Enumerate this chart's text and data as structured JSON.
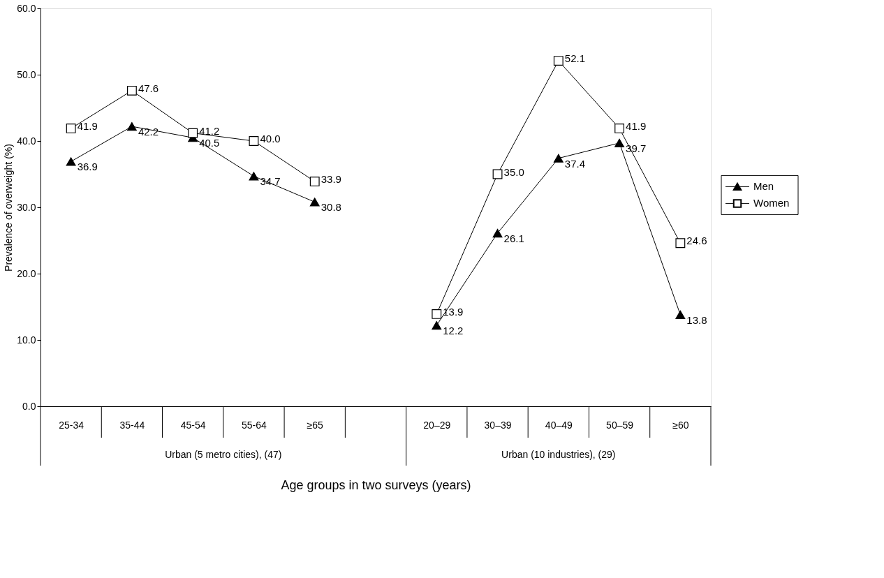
{
  "chart_data": {
    "type": "line",
    "xlabel": "Age groups in two surveys (years)",
    "ylabel": "Prevalence of overweight (%)",
    "categories": [
      "25-34",
      "35-44",
      "45-54",
      "55-64",
      "≥65",
      null,
      "20–29",
      "30–39",
      "40–49",
      "50–59",
      "≥60"
    ],
    "series": [
      {
        "name": "Men",
        "color": "#000000",
        "marker": "triangle",
        "values": [
          36.9,
          42.2,
          40.5,
          34.7,
          30.8,
          null,
          12.2,
          26.1,
          37.4,
          39.7,
          13.8
        ],
        "value_labels": [
          "36.9",
          "42.2",
          "40.5",
          "34.7",
          "30.8",
          null,
          "12.2",
          "26.1",
          "37.4",
          "39.7",
          "13.8"
        ]
      },
      {
        "name": "Women",
        "color": "#000000",
        "marker": "square",
        "values": [
          41.9,
          47.6,
          41.2,
          40.0,
          33.9,
          null,
          13.9,
          35.0,
          52.1,
          41.9,
          24.6
        ],
        "value_labels": [
          "41.9",
          "47.6",
          "41.2",
          "40.0",
          "33.9",
          null,
          "13.9",
          "35.0",
          "52.1",
          "41.9",
          "24.6"
        ]
      }
    ],
    "ylim": [
      0,
      60
    ],
    "yticks": [
      {
        "value": 0,
        "label": "0.0"
      },
      {
        "value": 10,
        "label": "10.0"
      },
      {
        "value": 20,
        "label": "20.0"
      },
      {
        "value": 30,
        "label": "30.0"
      },
      {
        "value": 40,
        "label": "40.0"
      },
      {
        "value": 50,
        "label": "50.0"
      },
      {
        "value": 60,
        "label": "60.0"
      }
    ],
    "annotations": [
      "Urban (5 metro cities), (47)",
      "Urban (10 industries), (29)"
    ],
    "legend": "right",
    "grid": false
  }
}
